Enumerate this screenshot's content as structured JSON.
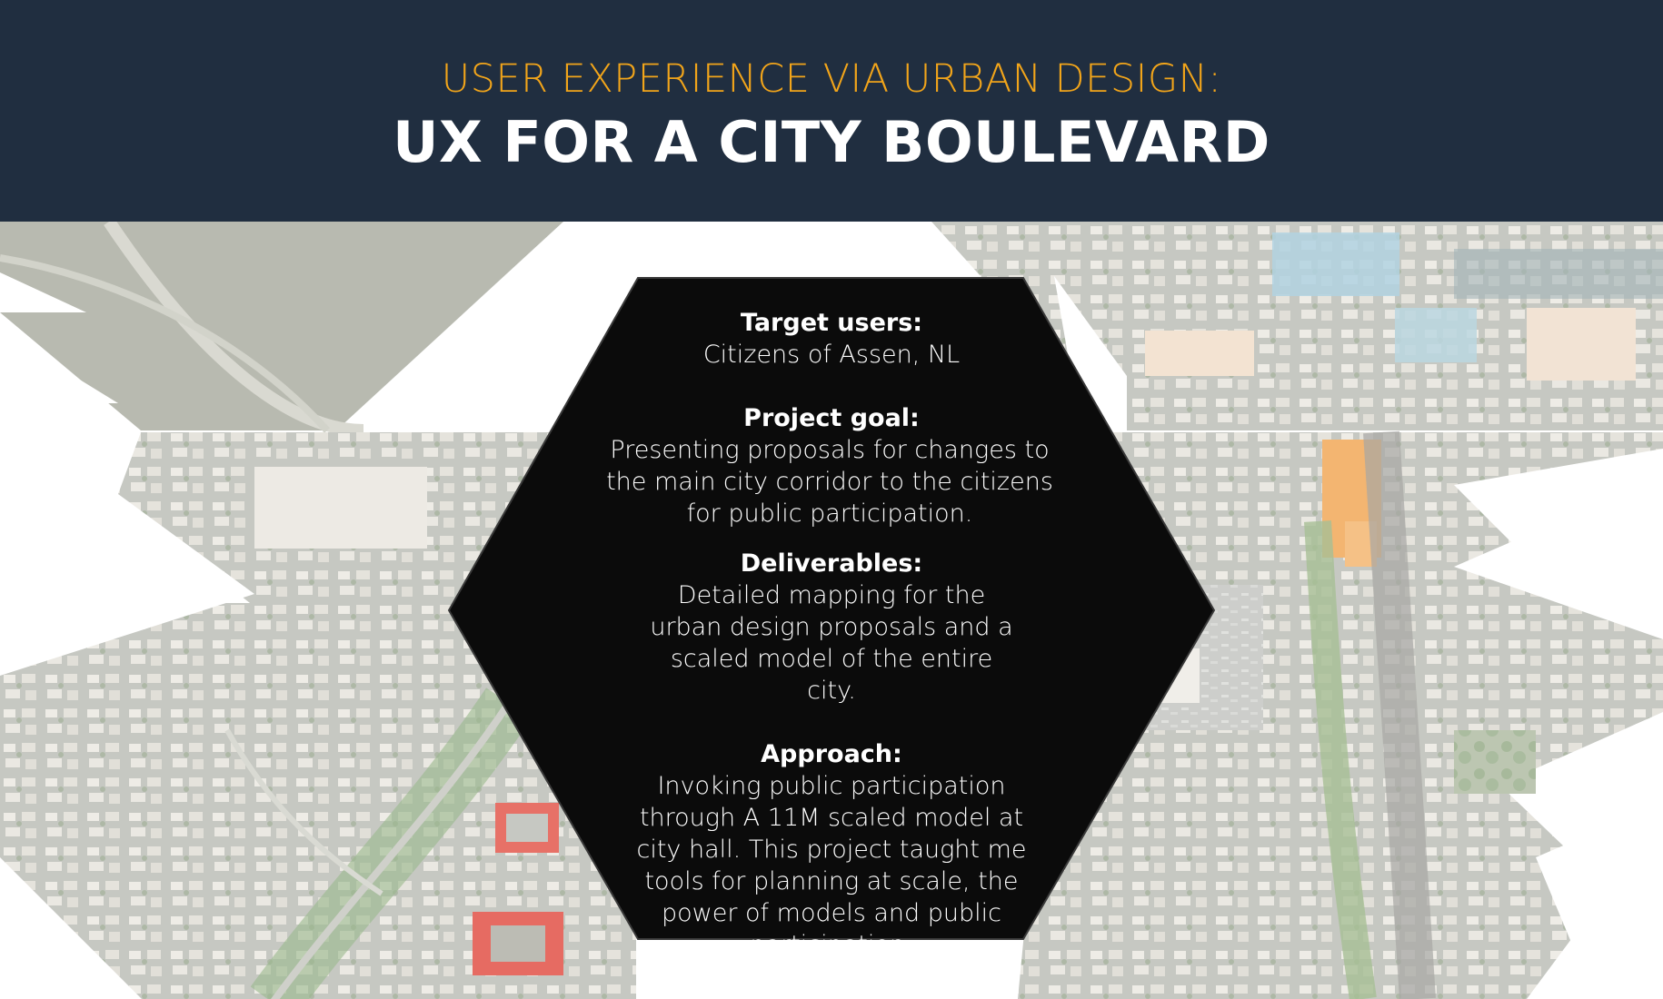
{
  "header": {
    "subtitle": "USER EXPERIENCE VIA URBAN DESIGN:",
    "title": "UX FOR A CITY BOULEVARD"
  },
  "sections": [
    {
      "heading": "Target users:",
      "body": "Citizens of Assen, NL"
    },
    {
      "heading": "Project goal:",
      "body": "Presenting proposals for changes to the main city corridor to the citizens for public participation."
    },
    {
      "heading": "Deliverables:",
      "body": "Detailed mapping for the urban design proposals and a scaled model of the entire city."
    },
    {
      "heading": "Approach:",
      "body": "Invoking public participation through A 11M scaled model at city hall. This project taught me tools for planning at scale, the power of models and public participation."
    }
  ],
  "colors": {
    "header_bg": "#202e40",
    "accent": "#f2a51a",
    "hexagon": "#0b0b0b"
  }
}
